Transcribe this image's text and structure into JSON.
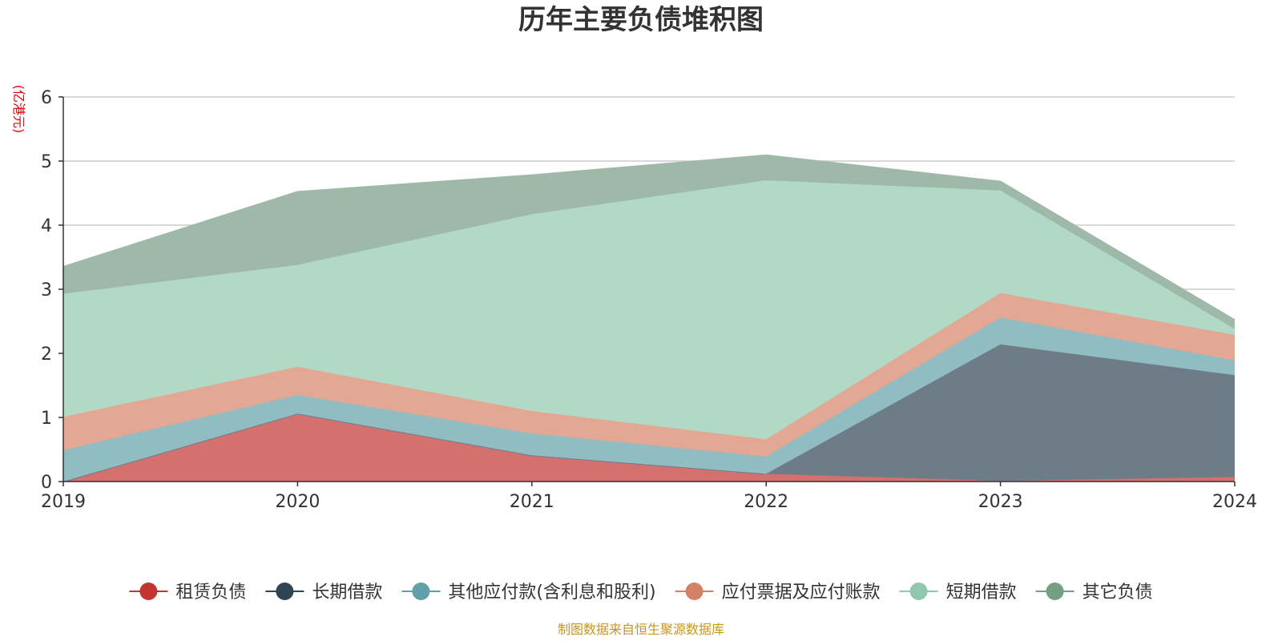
{
  "chart_data": {
    "type": "area",
    "stacked": true,
    "title": "历年主要负债堆积图",
    "unit_label": "(亿港元)",
    "x": [
      "2019",
      "2020",
      "2021",
      "2022",
      "2023",
      "2024"
    ],
    "ylim": [
      0,
      6
    ],
    "y_ticks": [
      "0",
      "1",
      "2",
      "3",
      "4",
      "5",
      "6"
    ],
    "grid": true,
    "legend_position": "bottom",
    "series": [
      {
        "name": "租赁负债",
        "color": "#c23531",
        "fill": "#d4716f",
        "values": [
          0.0,
          1.06,
          0.41,
          0.12,
          0.01,
          0.07
        ]
      },
      {
        "name": "长期借款",
        "color": "#2f4554",
        "fill": "#6d7c87",
        "values": [
          0.0,
          0.0,
          0.0,
          0.0,
          2.13,
          1.59
        ]
      },
      {
        "name": "其他应付款(含利息和股利)",
        "color": "#61a0a8",
        "fill": "#90bcc2",
        "values": [
          0.49,
          0.29,
          0.34,
          0.27,
          0.42,
          0.23
        ]
      },
      {
        "name": "应付票据及应付账款",
        "color": "#d48265",
        "fill": "#e2a893",
        "values": [
          0.52,
          0.44,
          0.35,
          0.27,
          0.38,
          0.4
        ]
      },
      {
        "name": "短期借款",
        "color": "#91c7ae",
        "fill": "#b2d9c6",
        "values": [
          1.92,
          1.59,
          3.07,
          4.04,
          1.6,
          0.09
        ]
      },
      {
        "name": "其它负债",
        "color": "#749f83",
        "fill": "#9eb9a7",
        "values": [
          0.42,
          1.14,
          0.61,
          0.39,
          0.14,
          0.14
        ]
      }
    ]
  },
  "source_note": "制图数据来自恒生聚源数据库"
}
